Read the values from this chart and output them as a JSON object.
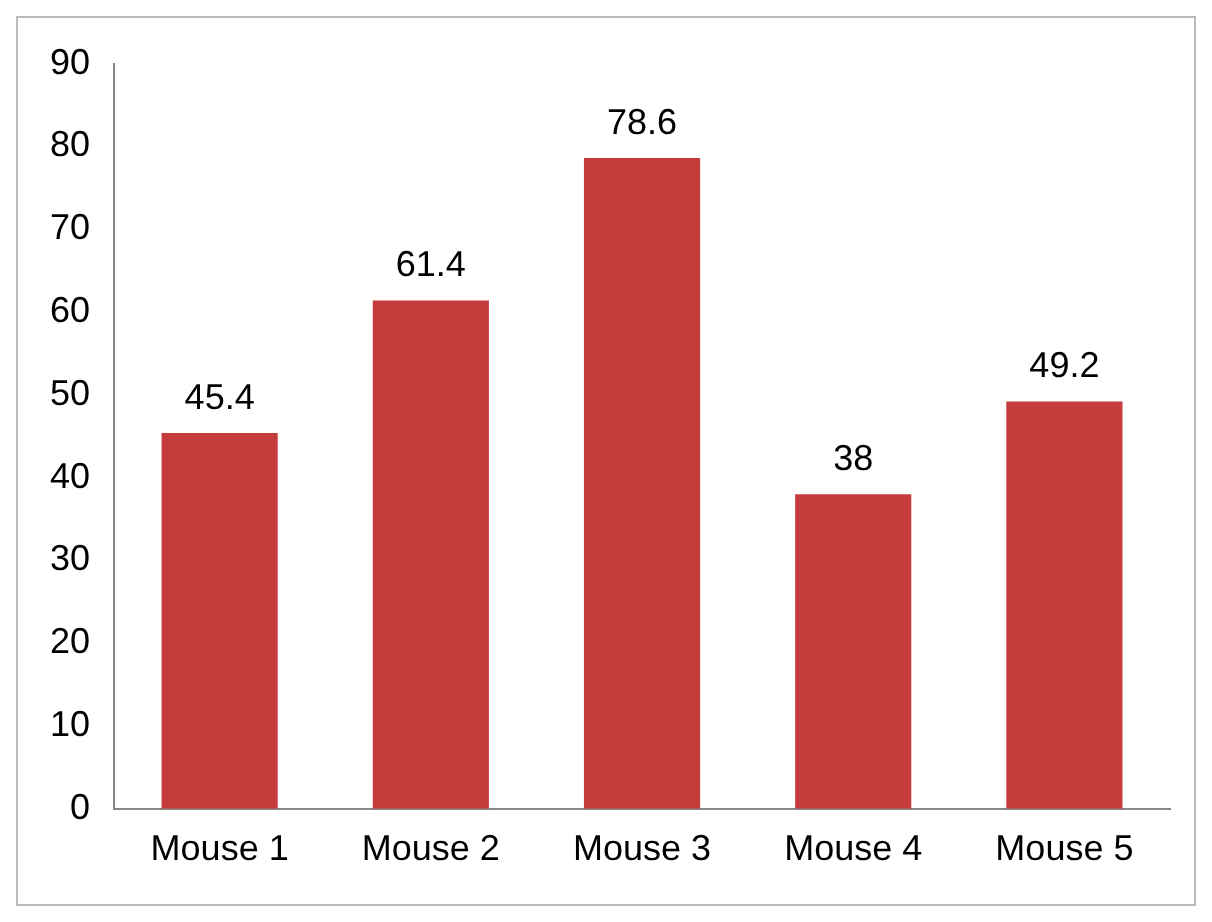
{
  "chart_data": {
    "type": "bar",
    "categories": [
      "Mouse 1",
      "Mouse 2",
      "Mouse 3",
      "Mouse 4",
      "Mouse 5"
    ],
    "values": [
      45.4,
      61.4,
      78.6,
      38,
      49.2
    ],
    "color": "#c63b3b",
    "ylim": [
      0,
      90
    ],
    "yticks": [
      0,
      10,
      20,
      30,
      40,
      50,
      60,
      70,
      80,
      90
    ],
    "grid": false,
    "legend": false,
    "data_labels": true
  }
}
